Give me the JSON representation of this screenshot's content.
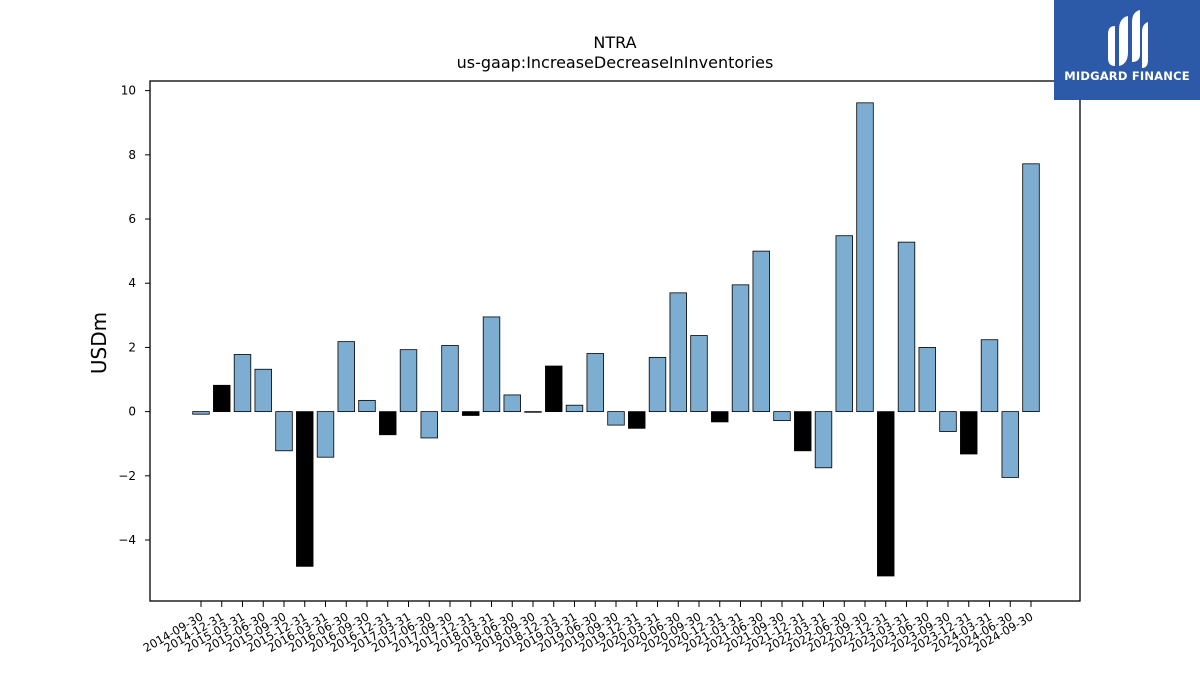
{
  "chart_data": {
    "type": "bar",
    "title": "NTRA",
    "subtitle": "us-gaap:IncreaseDecreaseInInventories",
    "xlabel": "",
    "ylabel": "USDm",
    "ylim": [
      -5.9,
      10.3
    ],
    "yticks": [
      10,
      8,
      6,
      4,
      2,
      0,
      -2,
      -4
    ],
    "ytick_labels": [
      "10",
      "8",
      "6",
      "4",
      "2",
      "0",
      "−2",
      "−4"
    ],
    "grid": false,
    "categories": [
      "2014-09-30",
      "2014-12-31",
      "2015-03-31",
      "2015-06-30",
      "2015-09-30",
      "2015-12-31",
      "2016-03-31",
      "2016-06-30",
      "2016-09-30",
      "2016-12-31",
      "2017-03-31",
      "2017-06-30",
      "2017-09-30",
      "2017-12-31",
      "2018-03-31",
      "2018-06-30",
      "2018-09-30",
      "2018-12-31",
      "2019-03-31",
      "2019-06-30",
      "2019-09-30",
      "2019-12-31",
      "2020-03-31",
      "2020-06-30",
      "2020-09-30",
      "2020-12-31",
      "2021-03-31",
      "2021-06-30",
      "2021-09-30",
      "2021-12-31",
      "2022-03-31",
      "2022-06-30",
      "2022-09-30",
      "2022-12-31",
      "2023-03-31",
      "2023-06-30",
      "2023-09-30",
      "2023-12-31",
      "2024-03-31",
      "2024-06-30",
      "2024-09-30"
    ],
    "values": [
      -0.08,
      0.82,
      1.78,
      1.32,
      -1.22,
      -4.82,
      -1.42,
      2.18,
      0.35,
      -0.72,
      1.93,
      -0.82,
      2.06,
      -0.12,
      2.95,
      0.52,
      -0.02,
      1.42,
      0.2,
      1.81,
      -0.42,
      -0.52,
      1.69,
      3.7,
      2.37,
      -0.32,
      3.95,
      5.0,
      -0.28,
      -1.22,
      -1.75,
      5.48,
      9.62,
      -5.12,
      5.28,
      2.0,
      -0.62,
      -1.32,
      2.24,
      -2.05,
      7.72
    ],
    "highlight": [
      false,
      true,
      false,
      false,
      false,
      true,
      false,
      false,
      false,
      true,
      false,
      false,
      false,
      true,
      false,
      false,
      false,
      true,
      false,
      false,
      false,
      true,
      false,
      false,
      false,
      true,
      false,
      false,
      false,
      true,
      false,
      false,
      false,
      true,
      false,
      false,
      false,
      true,
      false,
      false,
      false
    ],
    "colors": {
      "bar": "#7eadd2",
      "highlight_bar": "#000000",
      "edge": "#000000"
    }
  },
  "logo": {
    "text": "MIDGARD FINANCE",
    "background": "#2d5aa8"
  }
}
